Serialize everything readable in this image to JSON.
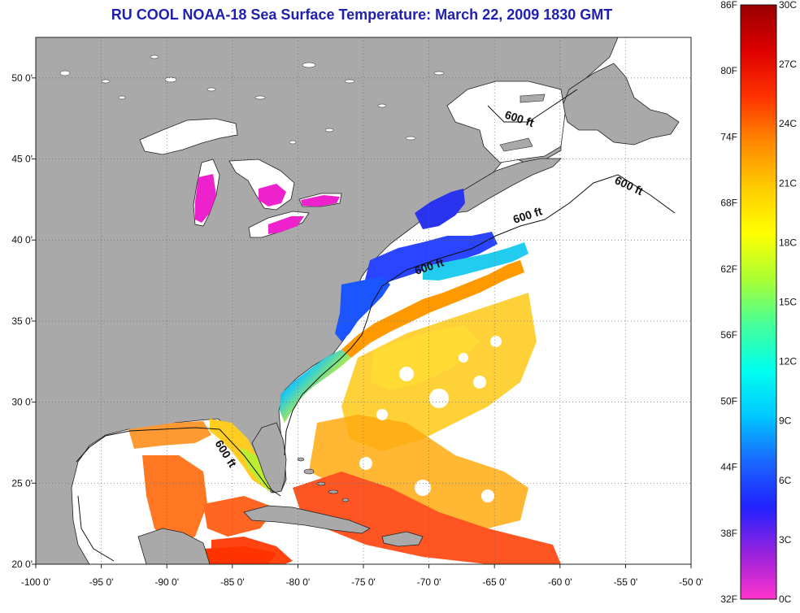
{
  "title": "RU COOL  NOAA-18  Sea Surface Temperature:  March 22, 2009 1830 GMT",
  "map": {
    "lon_range": [
      -100,
      -50
    ],
    "lat_range": [
      20,
      52.5
    ],
    "lon_ticks": [
      "-100 0'",
      "-95 0'",
      "-90 0'",
      "-85 0'",
      "-80 0'",
      "-75 0'",
      "-70 0'",
      "-65 0'",
      "-60 0'",
      "-55 0'",
      "-50 0'"
    ],
    "lat_ticks": [
      "50 0'",
      "45 0'",
      "40 0'",
      "35 0'",
      "30 0'",
      "25 0'",
      "20 0'"
    ],
    "contour_labels": [
      "600 ft",
      "600 ft",
      "600 ft",
      "600 ft",
      "600 ft"
    ],
    "land_color": "#a9a9a9",
    "no_data_color": "#ffffff"
  },
  "colorbar": {
    "fahrenheit_labels": [
      "86F",
      "80F",
      "74F",
      "68F",
      "62F",
      "56F",
      "50F",
      "44F",
      "38F",
      "32F"
    ],
    "celsius_labels": [
      "30C",
      "27C",
      "24C",
      "21C",
      "18C",
      "15C",
      "12C",
      "9C",
      "6C",
      "3C",
      "0C"
    ],
    "gradient": [
      "#ff33cc",
      "#9922dd",
      "#2222ff",
      "#1a66ff",
      "#00c8ff",
      "#00ffee",
      "#44ff99",
      "#aaff33",
      "#ffff00",
      "#ffcc00",
      "#ff8800",
      "#ff3300",
      "#dd0000",
      "#990000"
    ]
  }
}
